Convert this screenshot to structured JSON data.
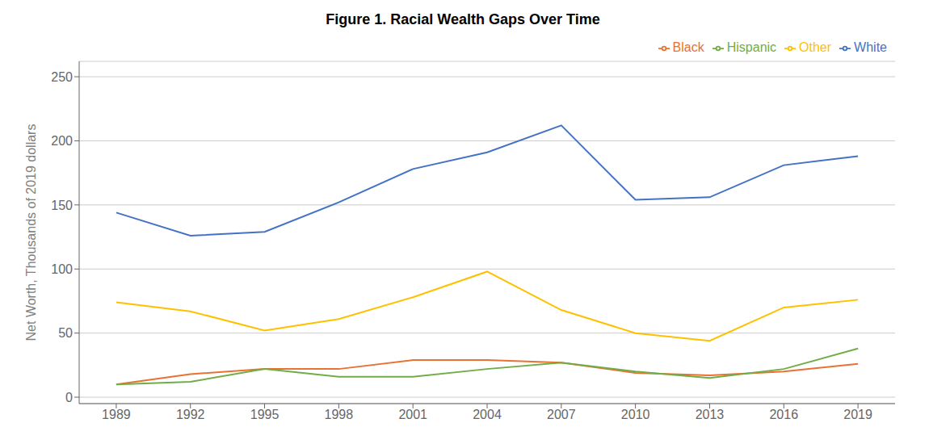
{
  "chart_data": {
    "type": "line",
    "title": "Figure 1. Racial Wealth Gaps Over Time",
    "ylabel": "Net Worth, Thousands of 2019 dollars",
    "x": [
      1989,
      1992,
      1995,
      1998,
      2001,
      2004,
      2007,
      2010,
      2013,
      2016,
      2019
    ],
    "series": [
      {
        "name": "White",
        "color": "#4472C4",
        "values": [
          144,
          126,
          129,
          152,
          178,
          191,
          212,
          154,
          156,
          181,
          188
        ]
      },
      {
        "name": "Black",
        "color": "#E97132",
        "values": [
          10,
          18,
          22,
          22,
          29,
          29,
          27,
          19,
          17,
          20,
          26
        ]
      },
      {
        "name": "Hispanic",
        "color": "#70AD47",
        "values": [
          10,
          12,
          22,
          16,
          16,
          22,
          27,
          20,
          15,
          22,
          38
        ]
      },
      {
        "name": "Other",
        "color": "#FFC000",
        "values": [
          74,
          67,
          52,
          61,
          78,
          98,
          68,
          50,
          44,
          70,
          76
        ]
      }
    ],
    "xlim": [
      1987.5,
      2020.5
    ],
    "xticks": [
      1989,
      1992,
      1995,
      1998,
      2001,
      2004,
      2007,
      2010,
      2013,
      2016,
      2019
    ],
    "ylim": [
      -5,
      262
    ],
    "yticks": [
      0,
      50,
      100,
      150,
      200,
      250
    ],
    "grid": true,
    "legend": "upper right"
  }
}
